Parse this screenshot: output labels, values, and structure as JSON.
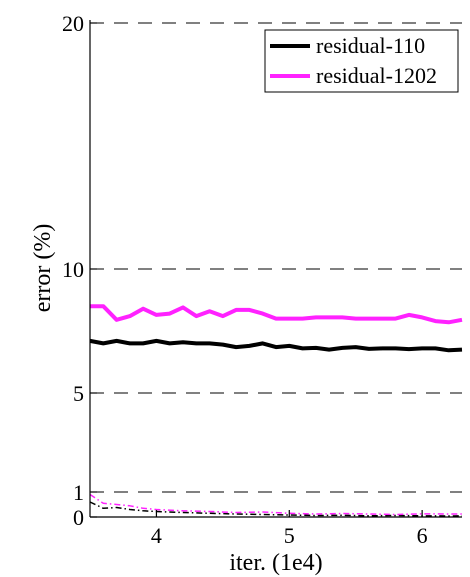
{
  "chart_data": {
    "type": "line",
    "title": "",
    "xlabel": "iter. (1e4)",
    "ylabel": "error (%)",
    "xlim": [
      3.5,
      6.3
    ],
    "ylim": [
      0,
      20
    ],
    "xticks": [
      4,
      5,
      6
    ],
    "yticks": [
      0,
      1,
      5,
      10,
      20
    ],
    "dashed_grid_y": [
      1,
      5,
      10,
      20
    ],
    "legend": {
      "position": "top-right"
    },
    "series": [
      {
        "name": "residual-110",
        "color": "#000000",
        "style": "solid",
        "x": [
          3.5,
          3.6,
          3.7,
          3.8,
          3.9,
          4.0,
          4.1,
          4.2,
          4.3,
          4.4,
          4.5,
          4.6,
          4.7,
          4.8,
          4.9,
          5.0,
          5.1,
          5.2,
          5.3,
          5.4,
          5.5,
          5.6,
          5.7,
          5.8,
          5.9,
          6.0,
          6.1,
          6.2,
          6.3
        ],
        "y": [
          7.1,
          7.0,
          7.1,
          7.0,
          7.0,
          7.1,
          7.0,
          7.05,
          7.0,
          7.0,
          6.95,
          6.85,
          6.9,
          7.0,
          6.85,
          6.9,
          6.8,
          6.82,
          6.75,
          6.82,
          6.85,
          6.78,
          6.8,
          6.8,
          6.77,
          6.8,
          6.8,
          6.72,
          6.75
        ]
      },
      {
        "name": "residual-1202",
        "color": "#ff22ff",
        "style": "solid",
        "x": [
          3.5,
          3.6,
          3.7,
          3.8,
          3.9,
          4.0,
          4.1,
          4.2,
          4.3,
          4.4,
          4.5,
          4.6,
          4.7,
          4.8,
          4.9,
          5.0,
          5.1,
          5.2,
          5.3,
          5.4,
          5.5,
          5.6,
          5.7,
          5.8,
          5.9,
          6.0,
          6.1,
          6.2,
          6.3
        ],
        "y": [
          8.5,
          8.5,
          7.95,
          8.1,
          8.4,
          8.15,
          8.2,
          8.45,
          8.1,
          8.3,
          8.1,
          8.35,
          8.35,
          8.2,
          8.0,
          8.0,
          8.0,
          8.05,
          8.05,
          8.05,
          8.0,
          8.0,
          8.0,
          8.0,
          8.15,
          8.05,
          7.9,
          7.85,
          7.95
        ]
      },
      {
        "name": "",
        "color": "#000000",
        "style": "dashdot",
        "x": [
          3.5,
          3.6,
          3.7,
          3.8,
          3.9,
          4.0,
          4.2,
          4.4,
          4.6,
          4.8,
          5.0,
          5.2,
          5.4,
          5.6,
          5.8,
          6.0,
          6.2,
          6.3
        ],
        "y": [
          0.6,
          0.35,
          0.38,
          0.3,
          0.25,
          0.22,
          0.18,
          0.15,
          0.12,
          0.1,
          0.08,
          0.06,
          0.07,
          0.05,
          0.06,
          0.05,
          0.04,
          0.05
        ]
      },
      {
        "name": "",
        "color": "#ff22ff",
        "style": "dashdot",
        "x": [
          3.5,
          3.6,
          3.7,
          3.8,
          3.9,
          4.0,
          4.2,
          4.4,
          4.6,
          4.8,
          5.0,
          5.2,
          5.4,
          5.6,
          5.8,
          6.0,
          6.2,
          6.3
        ],
        "y": [
          0.9,
          0.55,
          0.5,
          0.45,
          0.35,
          0.3,
          0.25,
          0.22,
          0.18,
          0.2,
          0.15,
          0.12,
          0.14,
          0.12,
          0.1,
          0.13,
          0.12,
          0.12
        ]
      }
    ]
  }
}
